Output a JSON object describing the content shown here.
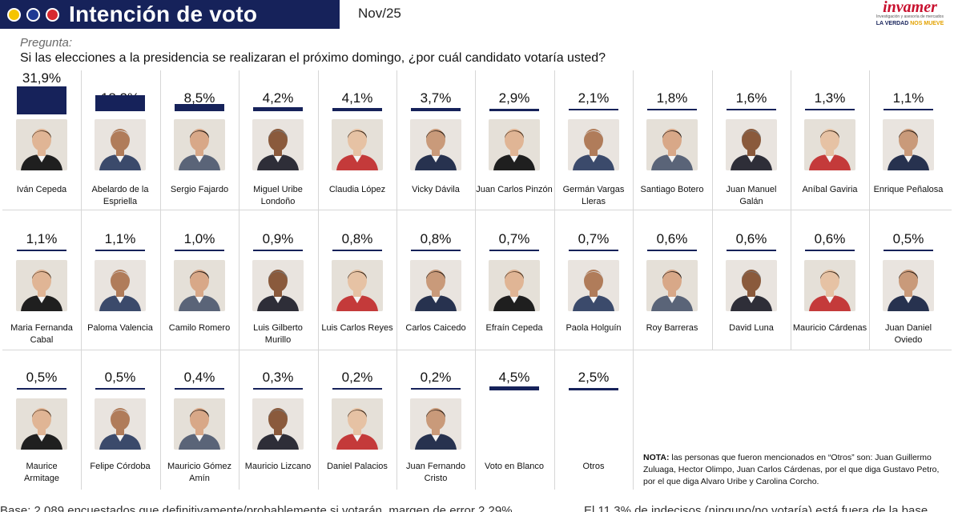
{
  "header": {
    "title": "Intención de voto",
    "date": "Nov/25",
    "logo_name": "invamer",
    "logo_sub": "Investigación y asesoría de mercados",
    "logo_slogan_a": "LA VERDAD ",
    "logo_slogan_b": "NOS MUEVE",
    "dot_colors": [
      "#f5c400",
      "#1f3a93",
      "#d7282f"
    ],
    "brand_color": "#16225a"
  },
  "question": {
    "label": "Pregunta:",
    "text": "Si las elecciones a la presidencia se realizaran el próximo domingo, ¿por cuál candidato votaría usted?"
  },
  "chart_data": {
    "type": "bar",
    "categories": [
      "Iván Cepeda",
      "Abelardo de la Espriella",
      "Sergio Fajardo",
      "Miguel Uribe Londoño",
      "Claudia López",
      "Vicky Dávila",
      "Juan Carlos Pinzón",
      "Germán Vargas Lleras",
      "Santiago Botero",
      "Juan Manuel Galán",
      "Aníbal Gaviria",
      "Enrique Peñalosa",
      "Maria Fernanda Cabal",
      "Paloma Valencia",
      "Camilo Romero",
      "Luis Gilberto Murillo",
      "Luis Carlos Reyes",
      "Carlos Caicedo",
      "Efraín Cepeda",
      "Paola Holguín",
      "Roy Barreras",
      "David Luna",
      "Mauricio Cárdenas",
      "Juan Daniel Oviedo",
      "Maurice Armitage",
      "Felipe Córdoba",
      "Mauricio Gómez Amín",
      "Mauricio Lizcano",
      "Daniel Palacios",
      "Juan Fernando Cristo",
      "Voto en Blanco",
      "Otros"
    ],
    "values": [
      31.9,
      18.2,
      8.5,
      4.2,
      4.1,
      3.7,
      2.9,
      2.1,
      1.8,
      1.6,
      1.3,
      1.1,
      1.1,
      1.1,
      1.0,
      0.9,
      0.8,
      0.8,
      0.7,
      0.7,
      0.6,
      0.6,
      0.6,
      0.5,
      0.5,
      0.5,
      0.4,
      0.3,
      0.2,
      0.2,
      4.5,
      2.5
    ],
    "value_labels": [
      "31,9%",
      "18,2%",
      "8,5%",
      "4,2%",
      "4,1%",
      "3,7%",
      "2,9%",
      "2,1%",
      "1,8%",
      "1,6%",
      "1,3%",
      "1,1%",
      "1,1%",
      "1,1%",
      "1,0%",
      "0,9%",
      "0,8%",
      "0,8%",
      "0,7%",
      "0,7%",
      "0,6%",
      "0,6%",
      "0,6%",
      "0,5%",
      "0,5%",
      "0,5%",
      "0,4%",
      "0,3%",
      "0,2%",
      "0,2%",
      "4,5%",
      "2,5%"
    ],
    "name_lines": [
      [
        "Iván Cepeda"
      ],
      [
        "Abelardo de la",
        "Espriella"
      ],
      [
        "Sergio Fajardo"
      ],
      [
        "Miguel Uribe",
        "Londoño"
      ],
      [
        "Claudia López"
      ],
      [
        "Vicky Dávila"
      ],
      [
        "Juan Carlos Pinzón"
      ],
      [
        "Germán Vargas",
        "Lleras"
      ],
      [
        "Santiago Botero"
      ],
      [
        "Juan Manuel",
        "Galán"
      ],
      [
        "Aníbal Gaviria"
      ],
      [
        "Enrique Peñalosa"
      ],
      [
        "Maria Fernanda",
        "Cabal"
      ],
      [
        "Paloma Valencia"
      ],
      [
        "Camilo Romero"
      ],
      [
        "Luis Gilberto",
        "Murillo"
      ],
      [
        "Luis Carlos Reyes"
      ],
      [
        "Carlos Caicedo"
      ],
      [
        "Efraín Cepeda"
      ],
      [
        "Paola Holguín"
      ],
      [
        "Roy Barreras"
      ],
      [
        "David Luna"
      ],
      [
        "Mauricio Cárdenas"
      ],
      [
        "Juan Daniel",
        "Oviedo"
      ],
      [
        "Maurice",
        "Armitage"
      ],
      [
        "Felipe Córdoba"
      ],
      [
        "Mauricio Gómez",
        "Amín"
      ],
      [
        "Mauricio Lizcano"
      ],
      [
        "Daniel Palacios"
      ],
      [
        "Juan Fernando",
        "Cristo"
      ],
      [
        "Voto en Blanco"
      ],
      [
        "Otros"
      ]
    ],
    "photo_kinds": [
      "person",
      "person",
      "person",
      "person",
      "person",
      "person",
      "person",
      "person",
      "person",
      "person",
      "person",
      "person",
      "person",
      "person",
      "person",
      "person",
      "person",
      "person",
      "person",
      "person",
      "person",
      "person",
      "person",
      "person",
      "person",
      "person",
      "person",
      "person",
      "person",
      "person",
      "none",
      "none"
    ],
    "bar_color": "#16225a"
  },
  "note": {
    "label": "NOTA:",
    "text": " las personas que fueron mencionados en “Otros” son: Juan Guillermo Zuluaga, Hector Olimpo, Juan Carlos Cárdenas, por el que diga Gustavo Petro, por el que diga Alvaro Uribe y Carolina Corcho."
  },
  "footer": {
    "base_left": "Base: 2.089 encuestados que definitivamente/probablemente si votarán, margen de error 2,29%",
    "base_right": "El 11,3% de indecisos (ninguno/no votaría) está fuera de la base"
  }
}
